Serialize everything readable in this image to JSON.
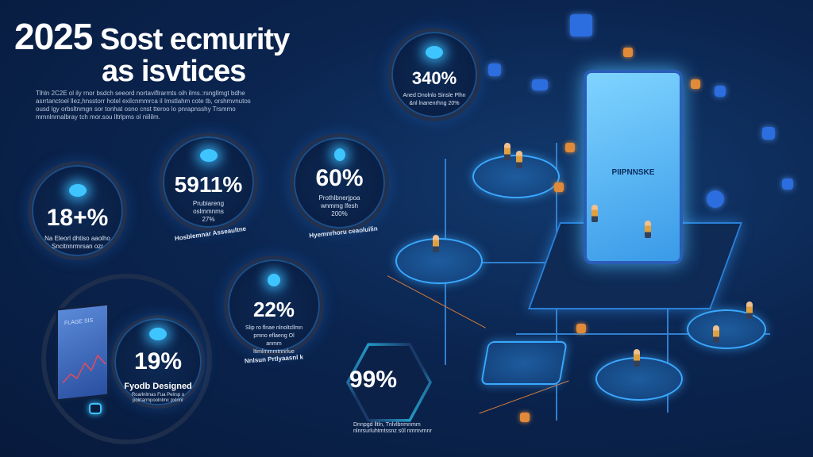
{
  "header": {
    "title_year": "2025",
    "title_rest": "Sost ecmurity",
    "title_line2": "as isvtices"
  },
  "intro": [
    "Tlhln 2C2E ol ily rnor bsdch seeord nortaviflrarmts oih ilms.:rsngllmgt bdhe",
    "asrrtanctoel llez,hnsstorr hotel exilcnmmrca il Imstlahm cote tb, orshmvnutos",
    "ousd lgy orbsltnmgn sor tonhat osno cnst tteroo lo pnrapnsshy Trsmmo",
    "mmnlnrnalbray tch mor.sou lltrlpms ol niililm."
  ],
  "stats": [
    {
      "value": "18+%",
      "caption": "Na Eleorl dhtiso aaolho Sncitnnrmrsan ozr"
    },
    {
      "value": "5911%",
      "caption": "Prubiareng oslmmnms 27%",
      "arc": "Hosblemnar Asseaultne"
    },
    {
      "value": "60%",
      "caption": "Prothlbnerjpoa wnmmg lfesh 200%",
      "arc": "Hyemnrhoru ceaoluilin"
    },
    {
      "value": "340%",
      "caption": "Aned Dnolnlo Sinsle Plhn &nl lnanenrhng 20%"
    },
    {
      "value": "22%",
      "caption": "Slip ro flnae nlnoltcllmn pmno eflaeng Ol anmm ltimlrnmmtnnrlue",
      "arc": "Nnlsun Prtlyaasnl k"
    },
    {
      "value": "19%",
      "title": "Fyodb Designed",
      "caption": "Roarlnlrnas Fua Pelrsp o polrtarmpoolnlmc pxlnnr"
    },
    {
      "value": "99%",
      "caption": "Dnnpgd lltln,  Tnlvlbnmnmm nlnrsurluhtmtssnz s0l nmmvmnr"
    }
  ],
  "illustration": {
    "screen_text": "PIIPNNSKE",
    "tablet_text": "FLAGE SIS"
  },
  "colors": {
    "background": "#0b2550",
    "accent": "#3ec5ff",
    "orange": "#e08a3a",
    "panel": "#4fb8f0"
  }
}
